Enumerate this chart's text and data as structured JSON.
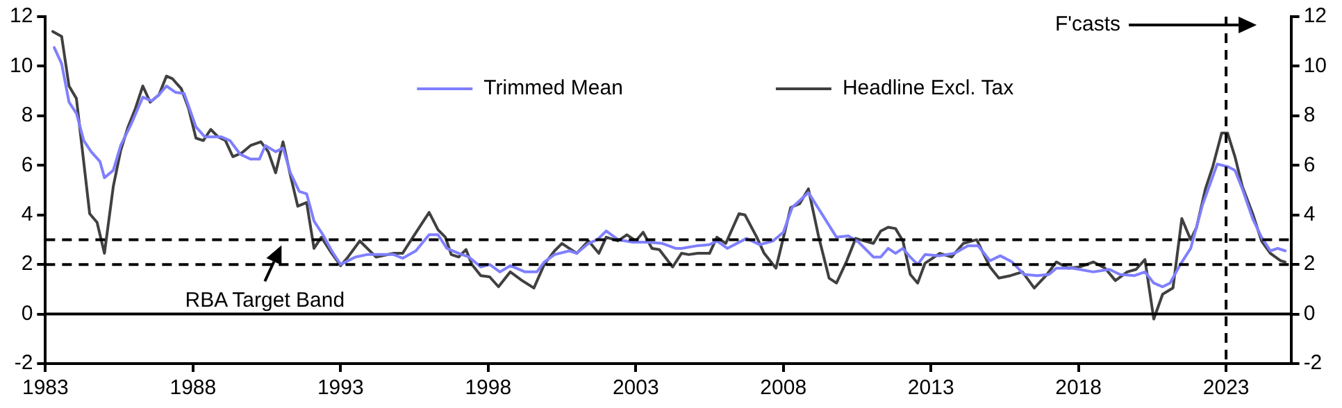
{
  "chart_data": {
    "type": "line",
    "series": [
      {
        "name": "Trimmed Mean",
        "color": "#7f7fff",
        "x": [
          1983.3,
          1983.55,
          1983.8,
          1984.05,
          1984.3,
          1984.55,
          1984.85,
          1985.0,
          1985.3,
          1985.55,
          1985.9,
          1986.3,
          1986.6,
          1986.85,
          1987.1,
          1987.4,
          1987.7,
          1988.1,
          1988.4,
          1988.95,
          1989.25,
          1989.6,
          1989.95,
          1990.25,
          1990.45,
          1990.8,
          1991.05,
          1991.3,
          1991.6,
          1991.85,
          1992.1,
          1992.4,
          1992.7,
          1993.0,
          1993.5,
          1993.9,
          1994.8,
          1995.1,
          1995.55,
          1996.0,
          1996.3,
          1996.6,
          1997.0,
          1997.35,
          1997.75,
          1998.05,
          1998.4,
          1998.75,
          1999.25,
          1999.65,
          1999.9,
          2000.25,
          2000.75,
          2001.0,
          2001.4,
          2001.7,
          2002.0,
          2002.4,
          2002.9,
          2003.4,
          2003.9,
          2004.35,
          2004.55,
          2005.05,
          2005.5,
          2005.75,
          2006.1,
          2006.75,
          2007.2,
          2007.65,
          2008.0,
          2008.3,
          2008.85,
          2009.3,
          2009.8,
          2010.2,
          2010.55,
          2011.05,
          2011.3,
          2011.55,
          2011.8,
          2012.05,
          2012.3,
          2012.55,
          2012.8,
          2013.3,
          2013.8,
          2014.25,
          2014.6,
          2015.0,
          2015.35,
          2015.75,
          2016.15,
          2016.6,
          2017.0,
          2017.25,
          2017.8,
          2018.5,
          2019.05,
          2019.4,
          2019.9,
          2020.25,
          2020.55,
          2020.85,
          2021.1,
          2021.45,
          2021.8,
          2022.2,
          2022.7,
          2023.05,
          2023.3,
          2023.55,
          2023.9,
          2024.2,
          2024.5,
          2024.75,
          2025.0
        ],
        "values": [
          10.75,
          10.1,
          8.55,
          8.1,
          7.0,
          6.55,
          6.15,
          5.5,
          5.8,
          6.8,
          7.65,
          8.75,
          8.6,
          8.85,
          9.2,
          8.95,
          8.9,
          7.55,
          7.15,
          7.15,
          7.0,
          6.45,
          6.25,
          6.25,
          6.8,
          6.55,
          6.7,
          5.7,
          4.95,
          4.85,
          3.75,
          3.2,
          2.55,
          2.0,
          2.3,
          2.4,
          2.4,
          2.25,
          2.55,
          3.2,
          3.2,
          2.65,
          2.45,
          2.3,
          1.9,
          2.0,
          1.7,
          1.95,
          1.7,
          1.7,
          2.1,
          2.4,
          2.55,
          2.45,
          2.85,
          3.0,
          3.35,
          3.0,
          2.9,
          2.9,
          2.85,
          2.65,
          2.65,
          2.75,
          2.8,
          2.95,
          2.65,
          3.05,
          2.8,
          2.95,
          3.3,
          4.3,
          4.9,
          4.05,
          3.1,
          3.15,
          2.9,
          2.3,
          2.3,
          2.65,
          2.45,
          2.65,
          2.3,
          2.0,
          2.4,
          2.35,
          2.45,
          2.75,
          2.75,
          2.15,
          2.35,
          2.1,
          1.6,
          1.55,
          1.6,
          1.85,
          1.85,
          1.7,
          1.8,
          1.6,
          1.55,
          1.7,
          1.25,
          1.1,
          1.25,
          2.0,
          2.65,
          4.4,
          6.05,
          5.95,
          5.8,
          5.05,
          3.85,
          3.1,
          2.55,
          2.65,
          2.55
        ]
      },
      {
        "name": "Headline Excl. Tax",
        "color": "#404040",
        "x": [
          1983.25,
          1983.55,
          1983.8,
          1984.05,
          1984.5,
          1984.75,
          1985.0,
          1985.3,
          1985.55,
          1985.8,
          1986.05,
          1986.3,
          1986.55,
          1986.85,
          1987.1,
          1987.3,
          1987.6,
          1987.85,
          1988.1,
          1988.35,
          1988.6,
          1988.85,
          1989.1,
          1989.35,
          1989.65,
          1989.95,
          1990.3,
          1990.55,
          1990.8,
          1991.05,
          1991.3,
          1991.55,
          1991.85,
          1992.1,
          1992.35,
          1992.7,
          1993.0,
          1993.25,
          1993.65,
          1994.2,
          1994.8,
          1995.1,
          1995.45,
          1996.0,
          1996.3,
          1996.55,
          1996.75,
          1997.0,
          1997.25,
          1997.45,
          1997.75,
          1998.05,
          1998.35,
          1998.75,
          1999.15,
          1999.55,
          1999.9,
          2000.25,
          2000.5,
          2001.0,
          2001.4,
          2001.75,
          2002.0,
          2002.4,
          2002.7,
          2003.0,
          2003.25,
          2003.55,
          2003.8,
          2004.25,
          2004.55,
          2004.8,
          2005.1,
          2005.5,
          2005.75,
          2006.05,
          2006.5,
          2006.7,
          2007.1,
          2007.35,
          2007.75,
          2008.25,
          2008.55,
          2008.85,
          2009.2,
          2009.55,
          2009.8,
          2010.15,
          2010.45,
          2011.05,
          2011.3,
          2011.55,
          2011.8,
          2012.05,
          2012.3,
          2012.55,
          2012.8,
          2013.3,
          2013.7,
          2014.1,
          2014.55,
          2015.0,
          2015.3,
          2015.7,
          2016.1,
          2016.5,
          2016.9,
          2017.25,
          2017.65,
          2018.05,
          2018.5,
          2018.9,
          2019.25,
          2019.65,
          2019.95,
          2020.25,
          2020.55,
          2020.85,
          2021.2,
          2021.5,
          2021.8,
          2022.0,
          2022.3,
          2022.55,
          2022.85,
          2023.05,
          2023.3,
          2023.55,
          2023.9,
          2024.2,
          2024.5,
          2024.85,
          2025.0
        ],
        "values": [
          11.4,
          11.2,
          9.2,
          8.7,
          4.05,
          3.7,
          2.45,
          5.15,
          6.6,
          7.55,
          8.3,
          9.2,
          8.55,
          8.85,
          9.6,
          9.5,
          9.1,
          8.3,
          7.1,
          7.0,
          7.45,
          7.15,
          7.0,
          6.35,
          6.5,
          6.8,
          6.95,
          6.55,
          5.7,
          6.95,
          5.6,
          4.35,
          4.5,
          2.65,
          3.1,
          2.45,
          1.95,
          2.3,
          2.95,
          2.3,
          2.45,
          2.45,
          3.1,
          4.1,
          3.4,
          3.1,
          2.4,
          2.3,
          2.6,
          2.0,
          1.55,
          1.5,
          1.1,
          1.7,
          1.35,
          1.05,
          2.0,
          2.55,
          2.85,
          2.45,
          2.95,
          2.45,
          3.1,
          2.95,
          3.2,
          2.95,
          3.3,
          2.65,
          2.6,
          1.9,
          2.45,
          2.4,
          2.45,
          2.45,
          3.1,
          2.85,
          4.05,
          4.0,
          3.1,
          2.45,
          1.85,
          4.3,
          4.45,
          5.05,
          3.1,
          1.45,
          1.25,
          2.15,
          3.05,
          2.85,
          3.35,
          3.5,
          3.45,
          2.95,
          1.6,
          1.25,
          2.05,
          2.45,
          2.3,
          2.85,
          3.0,
          1.9,
          1.45,
          1.55,
          1.7,
          1.05,
          1.55,
          2.1,
          1.85,
          1.9,
          2.1,
          1.85,
          1.35,
          1.7,
          1.8,
          2.2,
          -0.2,
          0.8,
          1.05,
          3.85,
          3.0,
          3.5,
          5.05,
          5.95,
          7.3,
          7.3,
          6.35,
          5.15,
          4.05,
          2.95,
          2.45,
          2.15,
          2.1
        ]
      }
    ],
    "xlim": [
      1983,
      2025.2
    ],
    "xticks": [
      1983,
      1988,
      1993,
      1998,
      2003,
      2008,
      2013,
      2018,
      2023
    ],
    "ylim": [
      -2,
      12
    ],
    "yticks": [
      -2,
      0,
      2,
      4,
      6,
      8,
      10,
      12
    ],
    "y2lim": [
      -2,
      12
    ],
    "y2ticks": [
      -2,
      0,
      2,
      4,
      6,
      8,
      10,
      12
    ],
    "ref_lines": [
      {
        "axis": "y",
        "value": 3,
        "line_style": "dashed"
      },
      {
        "axis": "y",
        "value": 2,
        "line_style": "dashed"
      },
      {
        "axis": "y",
        "value": 0,
        "line_style": "solid"
      },
      {
        "axis": "x",
        "value": 2023,
        "line_style": "dashed",
        "label": "F'casts"
      }
    ],
    "annotations": [
      {
        "text": "RBA Target Band",
        "x": 1991,
        "y": 3
      }
    ],
    "legend": "top",
    "grid": false,
    "marker": "none",
    "line_style": "solid"
  }
}
